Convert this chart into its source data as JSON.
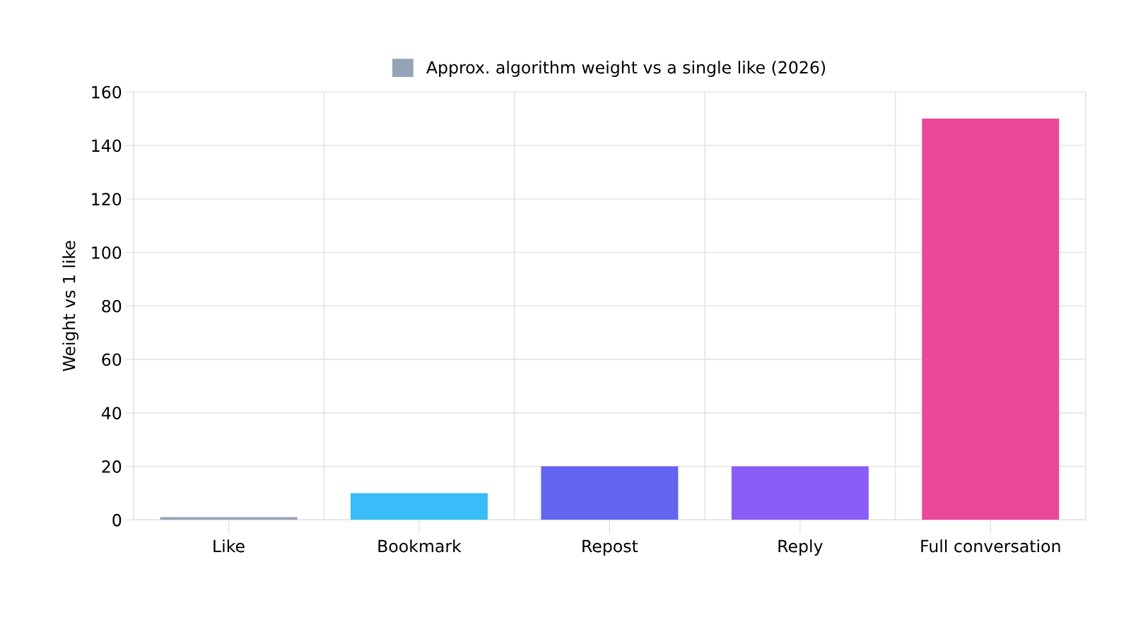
{
  "chart_data": {
    "type": "bar",
    "ylabel": "Weight vs 1 like",
    "categories": [
      "Like",
      "Bookmark",
      "Repost",
      "Reply",
      "Full conversation"
    ],
    "series": [
      {
        "name": "Approx. algorithm weight vs a single like (2026)",
        "color": "#94a3b8",
        "colors": [
          "#94a3b8",
          "#38bdf8",
          "#6366f1",
          "#8b5cf6",
          "#ec4899"
        ],
        "values": [
          1,
          10,
          20,
          20,
          150
        ]
      }
    ],
    "ylim": [
      0,
      160
    ],
    "yticks": [
      0,
      20,
      40,
      60,
      80,
      100,
      120,
      140,
      160
    ],
    "grid": true,
    "legend": "top"
  }
}
